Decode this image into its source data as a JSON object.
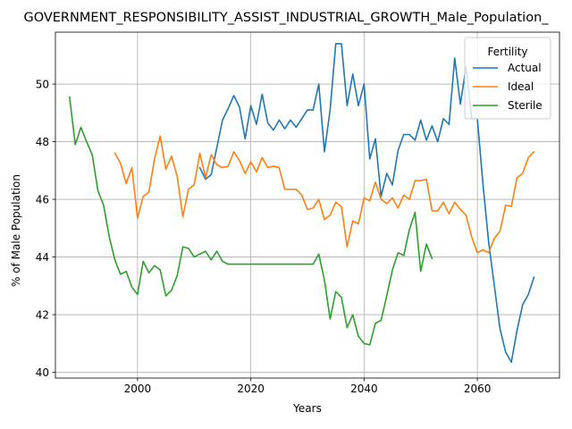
{
  "chart_data": {
    "type": "line",
    "title": "GOVERNMENT_RESPONSIBILITY_ASSIST_INDUSTRIAL_GROWTH_Male_Population_",
    "xlabel": "Years",
    "ylabel": "% of Male Population",
    "xlim": [
      1985.5,
      2074.5
    ],
    "ylim": [
      39.8,
      51.8
    ],
    "xticks": [
      2000,
      2020,
      2040,
      2060
    ],
    "yticks": [
      40,
      42,
      44,
      46,
      48,
      50
    ],
    "grid": true,
    "legend": {
      "title": "Fertility",
      "position": "top-right"
    },
    "series": [
      {
        "name": "Actual",
        "color": "#1f77b4",
        "x": [
          2011,
          2012,
          2013,
          2014,
          2015,
          2016,
          2017,
          2018,
          2019,
          2020,
          2021,
          2022,
          2023,
          2024,
          2025,
          2026,
          2027,
          2028,
          2029,
          2030,
          2031,
          2032,
          2033,
          2034,
          2035,
          2036,
          2037,
          2038,
          2039,
          2040,
          2041,
          2042,
          2043,
          2044,
          2045,
          2046,
          2047,
          2048,
          2049,
          2050,
          2051,
          2052,
          2053,
          2054,
          2055,
          2056,
          2057,
          2058,
          2059,
          2060,
          2061,
          2062,
          2063,
          2064,
          2065,
          2066,
          2067,
          2068,
          2069,
          2070
        ],
        "values": [
          47.1,
          46.7,
          46.85,
          47.8,
          48.75,
          49.15,
          49.6,
          49.2,
          48.1,
          49.25,
          48.6,
          49.65,
          48.65,
          48.4,
          48.75,
          48.45,
          48.75,
          48.5,
          48.8,
          49.1,
          49.1,
          50.0,
          47.65,
          49.1,
          51.4,
          51.4,
          49.25,
          50.35,
          49.25,
          50.0,
          47.4,
          48.1,
          46.1,
          46.9,
          46.5,
          47.7,
          48.25,
          48.25,
          48.05,
          48.75,
          48.05,
          48.55,
          48.0,
          48.8,
          48.6,
          50.9,
          49.3,
          50.6,
          48.8,
          48.8,
          46.5,
          44.5,
          43.0,
          41.5,
          40.7,
          40.35,
          41.45,
          42.35,
          42.7,
          43.3
        ]
      },
      {
        "name": "Ideal",
        "color": "#ff7f0e",
        "x": [
          1996,
          1997,
          1998,
          1999,
          2000,
          2001,
          2002,
          2003,
          2004,
          2005,
          2006,
          2007,
          2008,
          2009,
          2010,
          2011,
          2012,
          2013,
          2014,
          2015,
          2016,
          2017,
          2018,
          2019,
          2020,
          2021,
          2022,
          2023,
          2024,
          2025,
          2026,
          2027,
          2028,
          2029,
          2030,
          2031,
          2032,
          2033,
          2034,
          2035,
          2036,
          2037,
          2038,
          2039,
          2040,
          2041,
          2042,
          2043,
          2044,
          2045,
          2046,
          2047,
          2048,
          2049,
          2050,
          2051,
          2052,
          2053,
          2054,
          2055,
          2056,
          2057,
          2058,
          2059,
          2060,
          2061,
          2062,
          2063,
          2064,
          2065,
          2066,
          2067,
          2068,
          2069,
          2070
        ],
        "values": [
          47.6,
          47.25,
          46.55,
          47.1,
          45.35,
          46.1,
          46.25,
          47.4,
          48.2,
          47.05,
          47.5,
          46.8,
          45.4,
          46.35,
          46.5,
          47.6,
          46.75,
          47.55,
          47.2,
          47.1,
          47.15,
          47.65,
          47.35,
          46.9,
          47.3,
          46.95,
          47.45,
          47.1,
          47.15,
          47.1,
          46.35,
          46.35,
          46.35,
          46.15,
          45.65,
          45.7,
          46.0,
          45.3,
          45.45,
          45.9,
          45.75,
          44.35,
          45.25,
          45.15,
          46.05,
          45.95,
          46.6,
          46.0,
          45.85,
          46.05,
          45.7,
          46.15,
          46.0,
          46.65,
          46.65,
          46.7,
          45.6,
          45.6,
          45.9,
          45.5,
          45.9,
          45.65,
          45.45,
          44.7,
          44.15,
          44.25,
          44.15,
          44.65,
          44.9,
          45.8,
          45.75,
          46.75,
          46.9,
          47.45,
          47.65
        ]
      },
      {
        "name": "Sterile",
        "color": "#2ca02c",
        "x": [
          1988,
          1989,
          1990,
          1991,
          1992,
          1993,
          1994,
          1995,
          1996,
          1997,
          1998,
          1999,
          2000,
          2001,
          2002,
          2003,
          2004,
          2005,
          2006,
          2007,
          2008,
          2009,
          2010,
          2011,
          2012,
          2013,
          2014,
          2015,
          2016,
          2017,
          2018,
          2019,
          2020,
          2021,
          2022,
          2023,
          2024,
          2025,
          2026,
          2027,
          2028,
          2029,
          2030,
          2031,
          2032,
          2033,
          2034,
          2035,
          2036,
          2037,
          2038,
          2039,
          2040,
          2041,
          2042,
          2043,
          2044,
          2045,
          2046,
          2047,
          2048,
          2049,
          2050,
          2051,
          2052
        ],
        "values": [
          49.55,
          47.9,
          48.5,
          48.0,
          47.55,
          46.3,
          45.8,
          44.7,
          43.9,
          43.4,
          43.5,
          42.95,
          42.7,
          43.85,
          43.45,
          43.7,
          43.55,
          42.65,
          42.85,
          43.35,
          44.35,
          44.3,
          44.0,
          44.1,
          44.2,
          43.9,
          44.2,
          43.85,
          43.75,
          43.75,
          43.75,
          43.75,
          43.75,
          43.75,
          43.75,
          43.75,
          43.75,
          43.75,
          43.75,
          43.75,
          43.75,
          43.75,
          43.75,
          43.75,
          44.1,
          43.2,
          41.85,
          42.8,
          42.6,
          41.55,
          42.0,
          41.25,
          41.0,
          40.95,
          41.7,
          41.8,
          42.65,
          43.55,
          44.15,
          44.05,
          44.95,
          45.55,
          43.5,
          44.45,
          43.95
        ]
      }
    ]
  }
}
